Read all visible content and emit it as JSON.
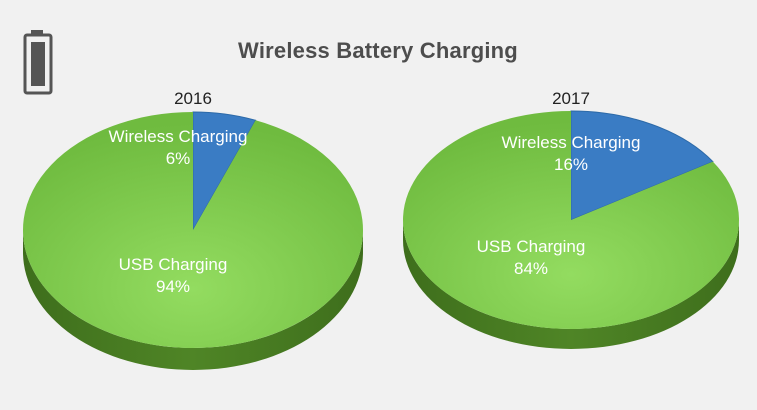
{
  "title": "Wireless Battery Charging",
  "icon": "battery-icon",
  "colors": {
    "usb_top": "#7ec84f",
    "usb_top_light": "#8fd95c",
    "usb_side": "#4a7d22",
    "wireless_top": "#3a7cc4",
    "wireless_side": "#25548a",
    "background": "#f1f1f1"
  },
  "chart_data": [
    {
      "type": "pie",
      "title": "2016",
      "slices": [
        {
          "name": "Wireless Charging",
          "value": 6,
          "value_label": "6%"
        },
        {
          "name": "USB Charging",
          "value": 94,
          "value_label": "94%"
        }
      ]
    },
    {
      "type": "pie",
      "title": "2017",
      "slices": [
        {
          "name": "Wireless Charging",
          "value": 16,
          "value_label": "16%"
        },
        {
          "name": "USB Charging",
          "value": 84,
          "value_label": "84%"
        }
      ]
    }
  ]
}
